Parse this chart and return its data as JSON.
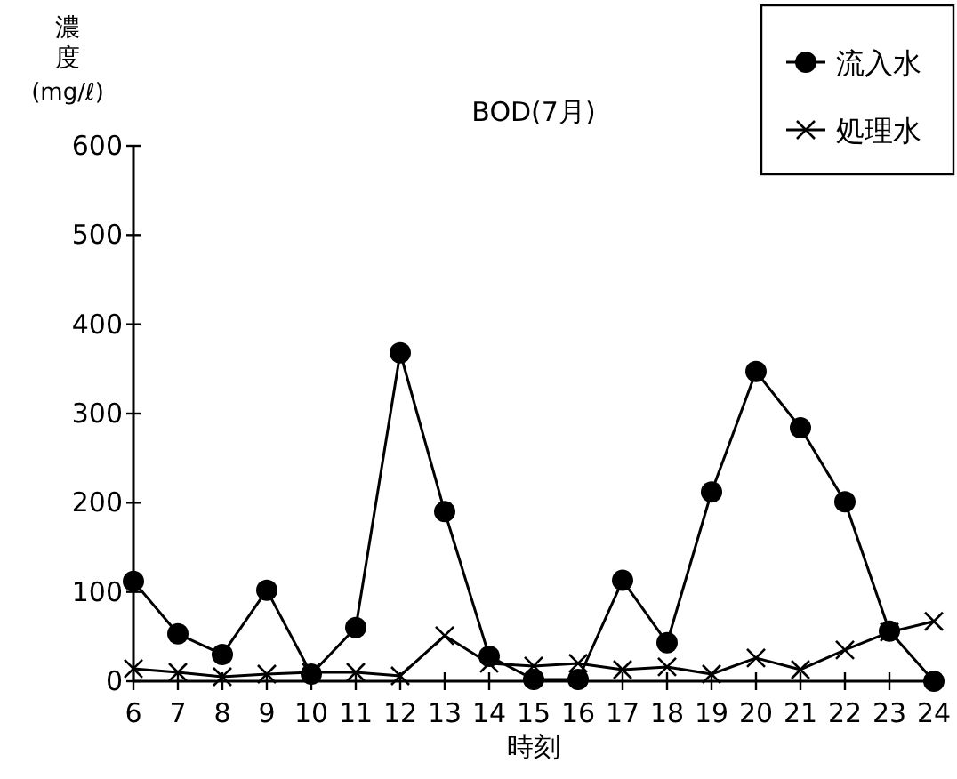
{
  "chart_data": {
    "type": "line",
    "title": "BOD(7月)",
    "xlabel": "時刻",
    "ylabel": "濃度(mg/ℓ)",
    "x": [
      6,
      7,
      8,
      9,
      10,
      11,
      12,
      13,
      14,
      15,
      16,
      17,
      18,
      19,
      20,
      21,
      22,
      23,
      24
    ],
    "series": [
      {
        "name": "流入水",
        "color": "#000000",
        "marker": "circle",
        "values": [
          112,
          53,
          30,
          102,
          8,
          60,
          368,
          190,
          28,
          2,
          2,
          113,
          43,
          212,
          347,
          284,
          201,
          56,
          0
        ]
      },
      {
        "name": "処理水",
        "color": "#000000",
        "marker": "cross",
        "values": [
          14,
          10,
          5,
          8,
          10,
          10,
          6,
          51,
          20,
          17,
          20,
          13,
          16,
          8,
          26,
          13,
          35,
          55,
          67
        ]
      }
    ],
    "xlim": [
      6,
      24
    ],
    "xticks": [
      6,
      7,
      8,
      9,
      10,
      11,
      12,
      13,
      14,
      15,
      16,
      17,
      18,
      19,
      20,
      21,
      22,
      23,
      24
    ],
    "ylim": [
      0,
      600
    ],
    "yticks": [
      0,
      100,
      200,
      300,
      400,
      500,
      600
    ],
    "grid": false,
    "legend": "top right",
    "line_style": "solid"
  }
}
